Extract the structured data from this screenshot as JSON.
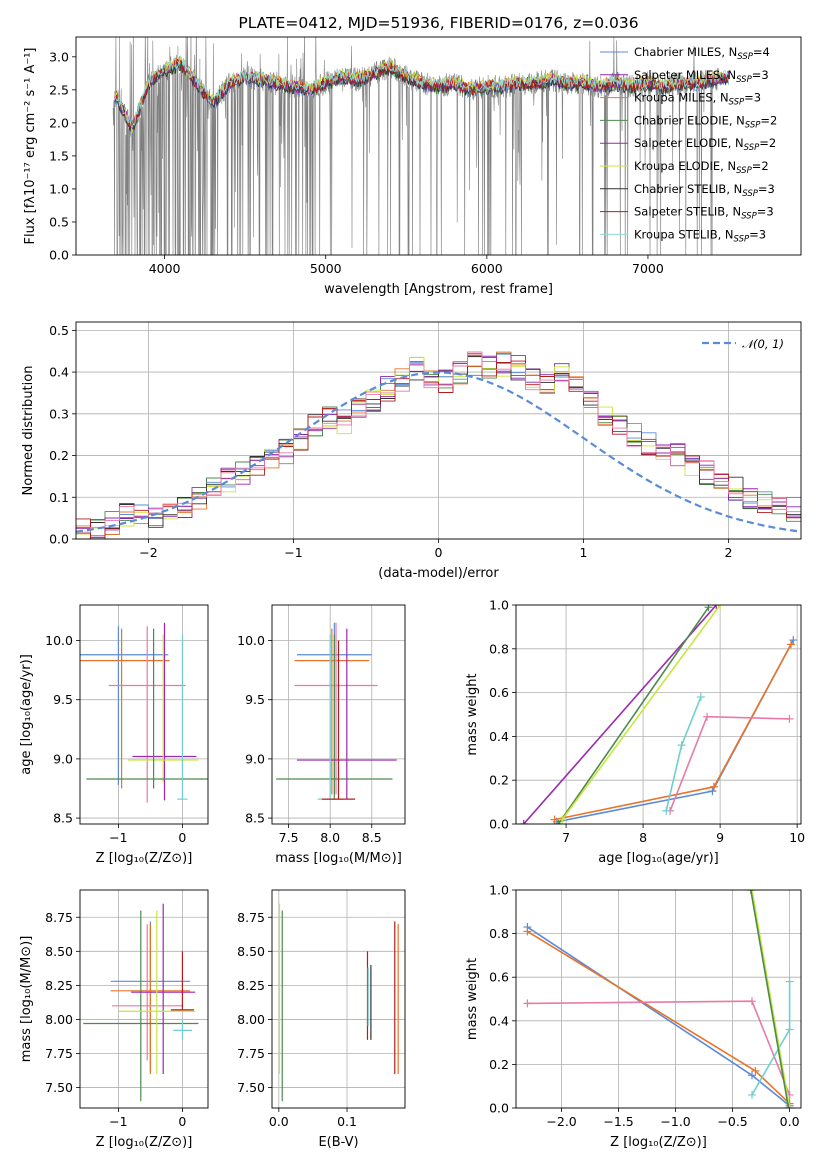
{
  "colors": {
    "chabrier_miles": "#5b8bd8",
    "salpeter_miles": "#8e24aa",
    "kroupa_miles": "#e8742a",
    "chabrier_elodie": "#4e8a4e",
    "salpeter_elodie": "#9c27b0",
    "kroupa_elodie": "#c6e83c",
    "chabrier_stelib": "#333333",
    "salpeter_stelib": "#b71c1c",
    "kroupa_stelib": "#8fd8d8",
    "pink": "#e87aa8",
    "teal": "#6fcfd0",
    "data": "#808080"
  },
  "chart_data": [
    {
      "id": "spectrum",
      "type": "line",
      "title": "PLATE=0412, MJD=51936, FIBERID=0176, z=0.036",
      "xlabel": "wavelength [Angstrom, rest frame]",
      "ylabel": "Flux [fλ10⁻¹⁷ erg cm⁻² s⁻¹ A⁻¹]",
      "xlim": [
        3450,
        7950
      ],
      "ylim": [
        0,
        3.3
      ],
      "xticks": [
        4000,
        5000,
        6000,
        7000
      ],
      "yticks": [
        0.0,
        0.5,
        1.0,
        1.5,
        2.0,
        2.5,
        3.0
      ],
      "legend_position": "top-right",
      "legend": [
        "Chabrier MILES, N_SSP=4",
        "Salpeter MILES, N_SSP=3",
        "Kroupa MILES, N_SSP=3",
        "Chabrier ELODIE, N_SSP=2",
        "Salpeter ELODIE, N_SSP=2",
        "Kroupa ELODIE, N_SSP=2",
        "Chabrier STELIB, N_SSP=3",
        "Salpeter STELIB, N_SSP=3",
        "Kroupa STELIB, N_SSP=3"
      ],
      "continuum": {
        "x": [
          3700,
          3800,
          3900,
          4000,
          4100,
          4200,
          4300,
          4400,
          4500,
          4600,
          4700,
          4800,
          4900,
          5000,
          5100,
          5200,
          5300,
          5400,
          5500,
          5600,
          5700,
          5800,
          5900,
          6000,
          6100,
          6200,
          6300,
          6400,
          6500,
          6600,
          6700,
          6800,
          6900,
          7000,
          7100,
          7200,
          7300,
          7400,
          7500
        ],
        "y": [
          2.4,
          1.9,
          2.6,
          2.8,
          2.9,
          2.6,
          2.3,
          2.6,
          2.7,
          2.65,
          2.6,
          2.55,
          2.5,
          2.6,
          2.7,
          2.65,
          2.75,
          2.85,
          2.7,
          2.6,
          2.55,
          2.6,
          2.5,
          2.55,
          2.55,
          2.6,
          2.6,
          2.65,
          2.6,
          2.6,
          2.55,
          2.6,
          2.55,
          2.6,
          2.55,
          2.6,
          2.6,
          2.65,
          2.7
        ]
      }
    },
    {
      "id": "residuals",
      "type": "bar",
      "xlabel": "(data-model)/error",
      "ylabel": "Normed distribution",
      "xlim": [
        -2.5,
        2.5
      ],
      "ylim": [
        0,
        0.52
      ],
      "xticks": [
        -2,
        -1,
        0,
        1,
        2
      ],
      "yticks": [
        0.0,
        0.1,
        0.2,
        0.3,
        0.4,
        0.5
      ],
      "legend": [
        "𝒩(0, 1)"
      ],
      "legend_position": "top-right",
      "bin_edges_start": -2.5,
      "bin_width": 0.1,
      "hist": [
        0.02,
        0.02,
        0.04,
        0.06,
        0.06,
        0.05,
        0.06,
        0.08,
        0.1,
        0.12,
        0.14,
        0.16,
        0.17,
        0.19,
        0.21,
        0.24,
        0.27,
        0.29,
        0.28,
        0.31,
        0.33,
        0.36,
        0.38,
        0.41,
        0.39,
        0.38,
        0.4,
        0.42,
        0.41,
        0.42,
        0.41,
        0.38,
        0.37,
        0.4,
        0.36,
        0.33,
        0.3,
        0.28,
        0.25,
        0.23,
        0.22,
        0.2,
        0.18,
        0.16,
        0.14,
        0.12,
        0.1,
        0.09,
        0.08,
        0.07
      ],
      "gaussian": {
        "mean": 0,
        "sigma": 1
      }
    },
    {
      "id": "age-vs-Z",
      "type": "scatter",
      "xlabel": "Z [log₁₀(Z/Z⊙)]",
      "ylabel": "age  [log₁₀(age/yr)]",
      "xlim": [
        -1.6,
        0.4
      ],
      "ylim": [
        8.45,
        10.3
      ],
      "xticks": [
        -1,
        0
      ],
      "yticks": [
        8.5,
        9.0,
        9.5,
        10.0
      ]
    },
    {
      "id": "age-vs-mass",
      "type": "scatter",
      "xlabel": "mass [log₁₀(M/M⊙)]",
      "xlim": [
        7.3,
        8.9
      ],
      "ylim": [
        8.45,
        10.3
      ],
      "xticks": [
        7.5,
        8.0,
        8.5
      ],
      "yticks": [
        8.5,
        9.0,
        9.5,
        10.0
      ]
    },
    {
      "id": "massweight-vs-age",
      "type": "line",
      "xlabel": "age  [log₁₀(age/yr)]",
      "ylabel": "mass weight",
      "xlim": [
        6.35,
        10.05
      ],
      "ylim": [
        0,
        1
      ],
      "xticks": [
        7,
        8,
        9,
        10
      ],
      "yticks": [
        0.0,
        0.2,
        0.4,
        0.6,
        0.8,
        1.0
      ]
    },
    {
      "id": "mass-vs-Z",
      "type": "scatter",
      "xlabel": "Z [log₁₀(Z/Z⊙)]",
      "ylabel": "mass [log₁₀(M/M⊙)]",
      "xlim": [
        -1.6,
        0.4
      ],
      "ylim": [
        7.35,
        8.95
      ],
      "xticks": [
        -1,
        0
      ],
      "yticks": [
        7.5,
        7.75,
        8.0,
        8.25,
        8.5,
        8.75
      ]
    },
    {
      "id": "mass-vs-EBV",
      "type": "scatter",
      "xlabel": "E(B-V)",
      "xlim": [
        -0.01,
        0.185
      ],
      "ylim": [
        7.35,
        8.95
      ],
      "xticks": [
        0.0,
        0.1
      ],
      "yticks": [
        7.5,
        7.75,
        8.0,
        8.25,
        8.5,
        8.75
      ]
    },
    {
      "id": "massweight-vs-Z",
      "type": "line",
      "xlabel": "Z [log₁₀(Z/Z⊙)]",
      "ylabel": "mass weight",
      "xlim": [
        -2.4,
        0.1
      ],
      "ylim": [
        0,
        1
      ],
      "xticks": [
        -2.0,
        -1.5,
        -1.0,
        -0.5,
        0.0
      ],
      "yticks": [
        0.0,
        0.2,
        0.4,
        0.6,
        0.8,
        1.0
      ]
    }
  ],
  "ssp": {
    "age_Z": [
      {
        "c": "chabrier_miles",
        "x": -1.0,
        "y": 9.88,
        "xe": 0.78,
        "ye0": 8.78,
        "ye1": 10.12
      },
      {
        "c": "kroupa_miles",
        "x": -0.95,
        "y": 9.83,
        "xe": 0.75,
        "ye0": 8.75,
        "ye1": 10.1
      },
      {
        "c": "pink",
        "x": -0.55,
        "y": 9.62,
        "xe": 0.6,
        "ye0": 8.63,
        "ye1": 10.12
      },
      {
        "c": "salpeter_elodie",
        "x": -0.28,
        "y": 9.02,
        "xe": 0.5,
        "ye0": 8.65,
        "ye1": 10.15
      },
      {
        "c": "kroupa_elodie",
        "x": -0.3,
        "y": 8.99,
        "xe": 0.55,
        "ye0": 8.8,
        "ye1": 10.05
      },
      {
        "c": "chabrier_elodie",
        "x": -0.45,
        "y": 8.83,
        "xe": 1.05,
        "ye0": 8.75,
        "ye1": 10.1
      },
      {
        "c": "teal",
        "x": 0.0,
        "y": 8.66,
        "xe": 0.08,
        "ye0": 8.66,
        "ye1": 10.05
      }
    ],
    "age_mass": [
      {
        "c": "chabrier_miles",
        "x": 8.05,
        "y": 9.88,
        "xe": 0.45,
        "ye0": 8.7,
        "ye1": 10.15
      },
      {
        "c": "kroupa_miles",
        "x": 8.02,
        "y": 9.83,
        "xe": 0.45,
        "ye0": 8.7,
        "ye1": 10.1
      },
      {
        "c": "pink",
        "x": 8.07,
        "y": 9.62,
        "xe": 0.5,
        "ye0": 8.7,
        "ye1": 10.15
      },
      {
        "c": "chabrier_elodie",
        "x": 8.05,
        "y": 8.83,
        "xe": 0.7,
        "ye0": 8.66,
        "ye1": 10.05
      },
      {
        "c": "salpeter_elodie",
        "x": 8.2,
        "y": 8.99,
        "xe": 0.6,
        "ye0": 8.66,
        "ye1": 10.1
      },
      {
        "c": "teal",
        "x": 8.0,
        "y": 8.66,
        "xe": 0.15,
        "ye0": 8.66,
        "ye1": 10.05
      },
      {
        "c": "salpeter_stelib",
        "x": 8.1,
        "y": 8.66,
        "xe": 0.2,
        "ye0": 8.66,
        "ye1": 10.0
      }
    ],
    "mw_age": [
      {
        "c": "chabrier_miles",
        "pts": [
          [
            6.88,
            0.01
          ],
          [
            8.9,
            0.15
          ],
          [
            9.95,
            0.84
          ]
        ]
      },
      {
        "c": "kroupa_miles",
        "pts": [
          [
            6.85,
            0.02
          ],
          [
            8.92,
            0.17
          ],
          [
            9.92,
            0.82
          ]
        ]
      },
      {
        "c": "pink",
        "pts": [
          [
            8.35,
            0.06
          ],
          [
            8.83,
            0.49
          ],
          [
            9.9,
            0.48
          ]
        ]
      },
      {
        "c": "teal",
        "pts": [
          [
            8.3,
            0.06
          ],
          [
            8.5,
            0.36
          ],
          [
            8.75,
            0.58
          ]
        ]
      },
      {
        "c": "salpeter_elodie",
        "pts": [
          [
            6.45,
            0.0
          ],
          [
            8.95,
            1.0
          ]
        ]
      },
      {
        "c": "chabrier_elodie",
        "pts": [
          [
            6.9,
            0.0
          ],
          [
            8.85,
            0.99
          ]
        ]
      },
      {
        "c": "kroupa_elodie",
        "pts": [
          [
            6.95,
            0.02
          ],
          [
            9.0,
            1.0
          ]
        ]
      }
    ],
    "mass_Z": [
      {
        "c": "chabrier_miles",
        "x": -0.5,
        "y": 8.28,
        "xe": 0.62,
        "ye0": 7.62,
        "ye1": 8.72
      },
      {
        "c": "kroupa_miles",
        "x": -0.5,
        "y": 8.21,
        "xe": 0.62,
        "ye0": 7.6,
        "ye1": 8.7
      },
      {
        "c": "pink",
        "x": -0.55,
        "y": 8.1,
        "xe": 0.55,
        "ye0": 7.7,
        "ye1": 8.7
      },
      {
        "c": "chabrier_elodie",
        "x": -0.65,
        "y": 7.97,
        "xe": 0.9,
        "ye0": 7.4,
        "ye1": 8.8
      },
      {
        "c": "salpeter_elodie",
        "x": -0.3,
        "y": 8.2,
        "xe": 0.5,
        "ye0": 7.6,
        "ye1": 8.85
      },
      {
        "c": "kroupa_elodie",
        "x": -0.4,
        "y": 8.06,
        "xe": 0.6,
        "ye0": 7.6,
        "ye1": 8.8
      },
      {
        "c": "salpeter_stelib",
        "x": 0.0,
        "y": 8.07,
        "xe": 0.18,
        "ye0": 8.07,
        "ye1": 8.5
      },
      {
        "c": "teal",
        "x": 0.0,
        "y": 7.92,
        "xe": 0.15,
        "ye0": 7.85,
        "ye1": 8.0
      }
    ],
    "mass_ebv": [
      {
        "c": "chabrier_elodie",
        "x": 0.005,
        "ye0": 7.4,
        "ye1": 8.8
      },
      {
        "c": "kroupa_elodie",
        "x": 0.001,
        "ye0": 7.6,
        "ye1": 8.85
      },
      {
        "c": "salpeter_stelib",
        "x": 0.13,
        "ye0": 7.85,
        "ye1": 8.5
      },
      {
        "c": "chabrier_stelib",
        "x": 0.135,
        "ye0": 7.85,
        "ye1": 8.4
      },
      {
        "c": "teal",
        "x": 0.131,
        "ye0": 7.95,
        "ye1": 8.38
      },
      {
        "c": "salpeter_stelib",
        "x": 0.17,
        "ye0": 7.6,
        "ye1": 8.72
      },
      {
        "c": "kroupa_miles",
        "x": 0.175,
        "ye0": 7.6,
        "ye1": 8.7
      }
    ],
    "mw_Z": [
      {
        "c": "chabrier_miles",
        "pts": [
          [
            -2.3,
            0.83
          ],
          [
            -0.33,
            0.15
          ],
          [
            0.0,
            0.01
          ]
        ]
      },
      {
        "c": "kroupa_miles",
        "pts": [
          [
            -2.3,
            0.81
          ],
          [
            -0.3,
            0.17
          ],
          [
            0.0,
            0.02
          ]
        ]
      },
      {
        "c": "pink",
        "pts": [
          [
            -2.3,
            0.48
          ],
          [
            -0.33,
            0.49
          ],
          [
            0.0,
            0.06
          ]
        ]
      },
      {
        "c": "teal",
        "pts": [
          [
            -0.33,
            0.06
          ],
          [
            0.0,
            0.36
          ],
          [
            0.0,
            0.58
          ]
        ]
      },
      {
        "c": "kroupa_elodie",
        "pts": [
          [
            -0.33,
            1.0
          ],
          [
            0.0,
            0.0
          ]
        ]
      },
      {
        "c": "chabrier_elodie",
        "pts": [
          [
            -0.34,
            1.0
          ],
          [
            -0.01,
            0.0
          ]
        ]
      }
    ]
  }
}
